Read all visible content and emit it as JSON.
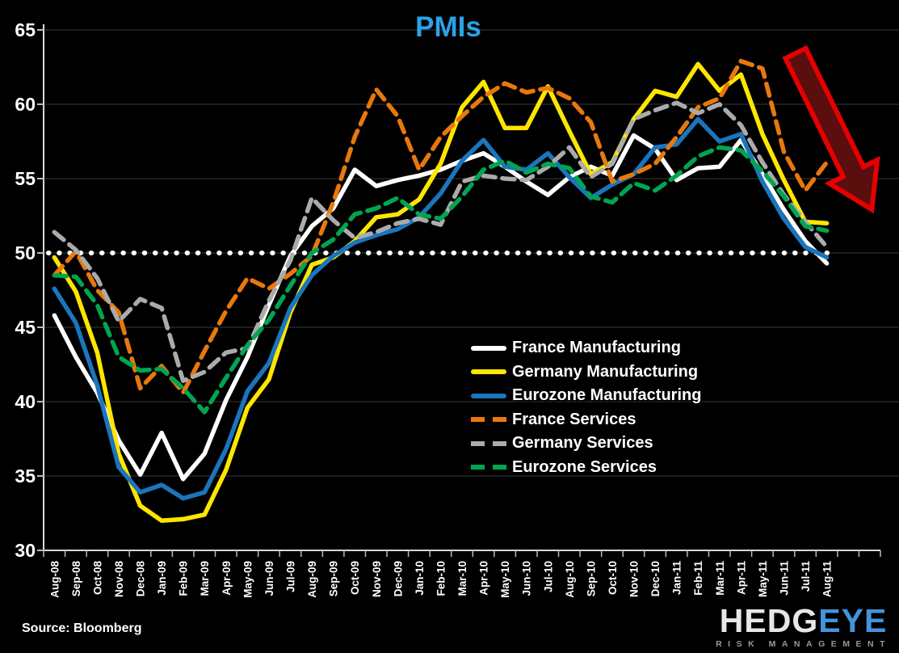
{
  "page": {
    "background": "#000000"
  },
  "title": {
    "text": "PMIs",
    "color": "#29A3E8"
  },
  "source_note": "Source: Bloomberg",
  "logo": {
    "part1": "HEDG",
    "part2": "EYE",
    "subtitle": "RISK MANAGEMENT"
  },
  "chart_data": {
    "type": "line",
    "title": "PMIs",
    "xlabel": "",
    "ylabel": "",
    "ylim": [
      30,
      65
    ],
    "yticks": [
      30,
      35,
      40,
      45,
      50,
      55,
      60,
      65
    ],
    "grid": "horizontal-faint",
    "legend_position": "inside-center-right",
    "reference_line": {
      "value": 50,
      "style": "dotted",
      "color": "#FFFFFF"
    },
    "annotation": {
      "type": "down-right-arrow",
      "fill": "#5A0E0E",
      "stroke": "#E60000",
      "meaning": "sharp decline"
    },
    "x": [
      "Aug-08",
      "Sep-08",
      "Oct-08",
      "Nov-08",
      "Dec-08",
      "Jan-09",
      "Feb-09",
      "Mar-09",
      "Apr-09",
      "May-09",
      "Jun-09",
      "Jul-09",
      "Aug-09",
      "Sep-09",
      "Oct-09",
      "Nov-09",
      "Dec-09",
      "Jan-10",
      "Feb-10",
      "Mar-10",
      "Apr-10",
      "May-10",
      "Jun-10",
      "Jul-10",
      "Aug-10",
      "Sep-10",
      "Oct-10",
      "Nov-10",
      "Dec-10",
      "Jan-11",
      "Feb-11",
      "Mar-11",
      "Apr-11",
      "May-11",
      "Jun-11",
      "Jul-11",
      "Aug-11"
    ],
    "series": [
      {
        "name": "France Manufacturing",
        "color": "#FFFFFF",
        "style": "solid",
        "values": [
          45.8,
          43.0,
          40.6,
          37.4,
          35.1,
          37.9,
          34.8,
          36.5,
          40.1,
          43.0,
          46.5,
          49.8,
          51.8,
          53.0,
          55.6,
          54.5,
          54.9,
          55.2,
          55.6,
          56.2,
          56.7,
          55.8,
          54.8,
          53.9,
          55.1,
          55.8,
          55.2,
          57.9,
          57.0,
          54.9,
          55.7,
          55.8,
          57.6,
          55.3,
          52.9,
          50.8,
          49.3
        ]
      },
      {
        "name": "Germany Manufacturing",
        "color": "#FFE600",
        "style": "solid",
        "values": [
          49.7,
          47.4,
          43.3,
          36.5,
          33.0,
          32.0,
          32.1,
          32.4,
          35.4,
          39.6,
          41.5,
          46.0,
          49.2,
          49.7,
          50.8,
          52.4,
          52.6,
          53.6,
          56.0,
          59.8,
          61.5,
          58.4,
          58.4,
          61.2,
          58.2,
          55.3,
          56.1,
          59.0,
          60.9,
          60.5,
          62.7,
          60.9,
          62.0,
          58.0,
          54.9,
          52.1,
          52.0
        ]
      },
      {
        "name": "Eurozone Manufacturing",
        "color": "#1B75BC",
        "style": "solid",
        "values": [
          47.6,
          45.3,
          41.1,
          35.6,
          33.9,
          34.4,
          33.5,
          33.9,
          36.8,
          40.7,
          42.6,
          46.3,
          48.5,
          49.8,
          50.7,
          51.2,
          51.6,
          52.4,
          54.0,
          56.2,
          57.6,
          55.8,
          55.6,
          56.7,
          55.1,
          53.7,
          54.6,
          55.3,
          57.1,
          57.3,
          59.0,
          57.5,
          58.0,
          54.8,
          52.3,
          50.4,
          49.7
        ]
      },
      {
        "name": "France Services",
        "color": "#E8780D",
        "style": "dashed",
        "values": [
          48.5,
          50.1,
          47.5,
          46.0,
          40.9,
          42.4,
          40.6,
          43.4,
          46.1,
          48.3,
          47.6,
          48.6,
          49.8,
          53.4,
          57.8,
          61.0,
          59.2,
          55.6,
          57.8,
          59.2,
          60.5,
          61.4,
          60.8,
          61.1,
          60.4,
          58.8,
          54.8,
          55.3,
          56.0,
          57.8,
          59.8,
          60.4,
          62.9,
          62.4,
          56.8,
          54.2,
          56.1
        ]
      },
      {
        "name": "Germany Services",
        "color": "#ABABAB",
        "style": "dashed",
        "values": [
          51.4,
          50.2,
          48.3,
          45.4,
          46.9,
          46.3,
          41.4,
          42.0,
          43.3,
          43.6,
          46.8,
          49.5,
          53.7,
          52.2,
          51.0,
          51.4,
          52.0,
          52.3,
          51.9,
          54.8,
          55.2,
          55.0,
          54.9,
          55.8,
          57.1,
          55.1,
          56.0,
          59.0,
          59.6,
          60.1,
          59.4,
          60.0,
          58.6,
          56.1,
          53.9,
          52.1,
          50.4
        ]
      },
      {
        "name": "Eurozone Services",
        "color": "#00A551",
        "style": "dashed",
        "values": [
          48.5,
          48.4,
          46.5,
          43.0,
          42.1,
          42.2,
          40.9,
          39.3,
          41.6,
          43.8,
          45.5,
          47.8,
          50.0,
          50.9,
          52.6,
          53.0,
          53.7,
          52.6,
          52.3,
          53.8,
          55.6,
          56.2,
          55.4,
          56.0,
          55.7,
          53.8,
          53.4,
          54.7,
          54.2,
          55.2,
          56.5,
          57.1,
          56.9,
          55.5,
          53.8,
          51.8,
          51.5
        ]
      }
    ]
  }
}
